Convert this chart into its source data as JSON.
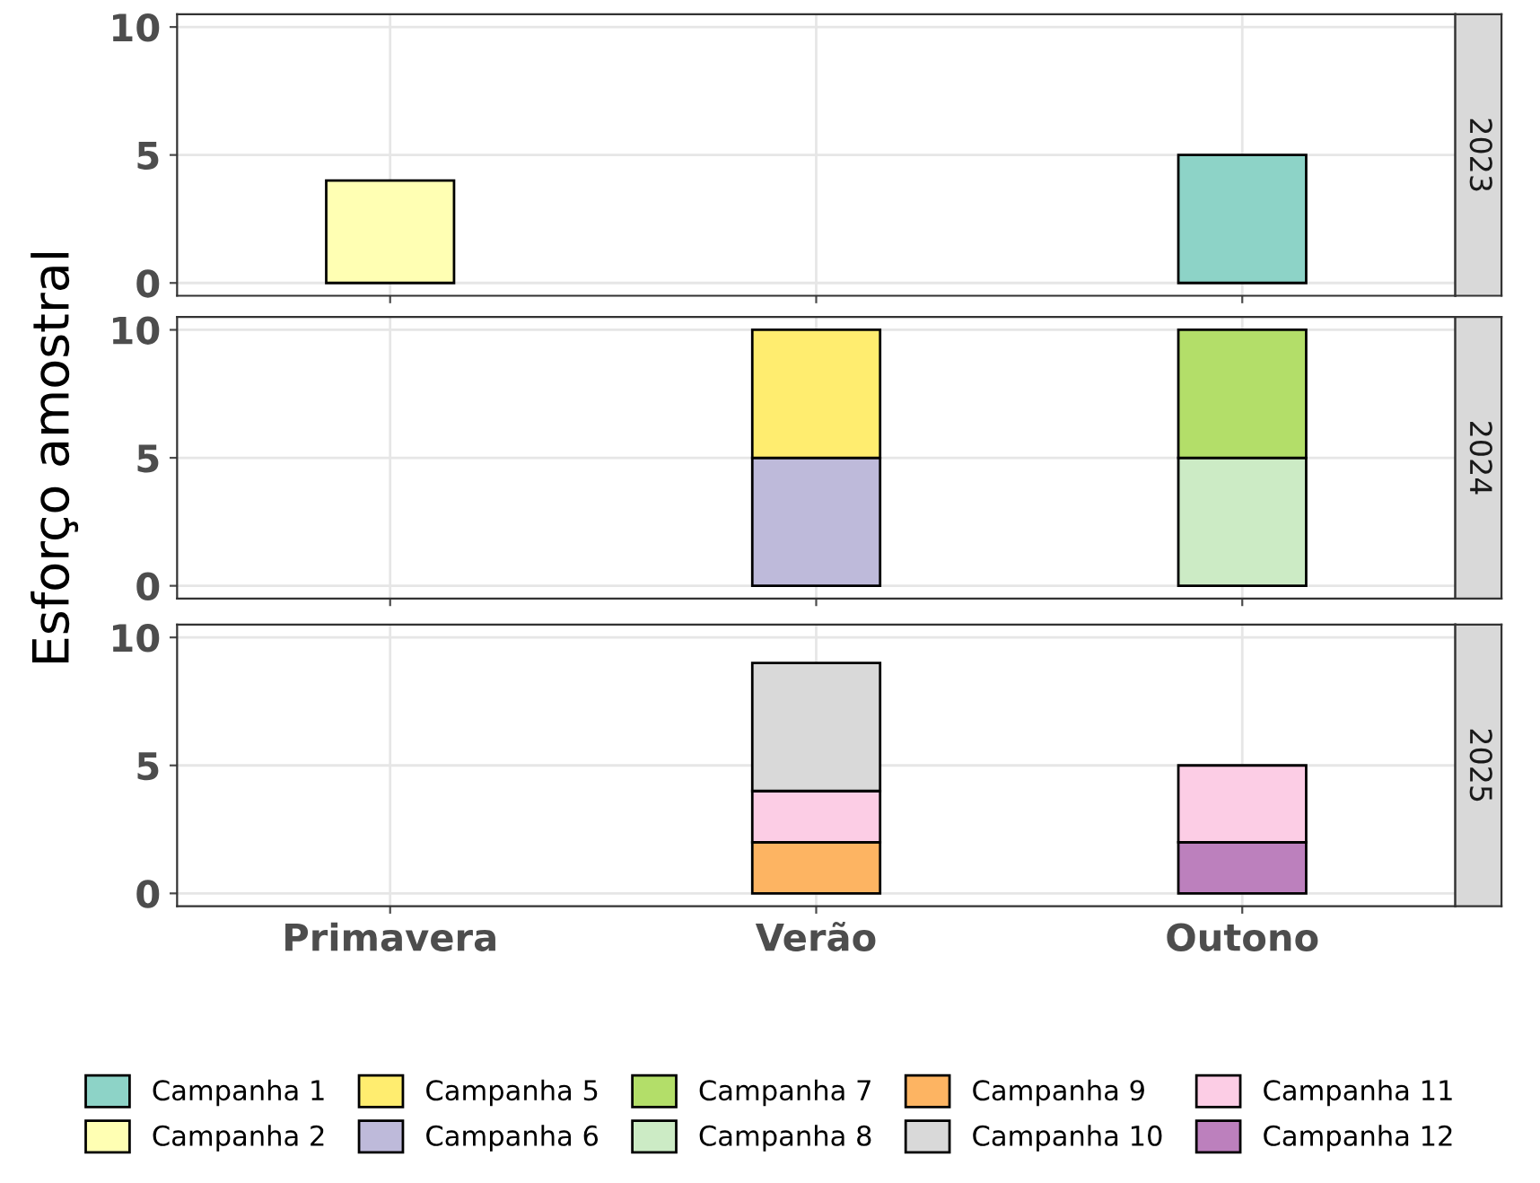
{
  "chart_data": [
    {
      "type": "bar",
      "title": "2023",
      "stacked": true,
      "legend": "bottom",
      "categories": [
        "Primavera",
        "Verão",
        "Outono"
      ],
      "ylim": [
        -0.5,
        10.5
      ],
      "yticks": [
        0,
        5,
        10
      ],
      "grid": true,
      "tick_labels": "y",
      "series": [
        {
          "name": "Campanha 1",
          "color": "#8dd3c7",
          "values": [
            null,
            null,
            5
          ]
        },
        {
          "name": "Campanha 2",
          "color": "#ffffb3",
          "values": [
            4,
            null,
            null
          ]
        }
      ]
    },
    {
      "type": "bar",
      "title": "2024",
      "ylabel": "Esforço amostral",
      "stacked": true,
      "legend": "bottom",
      "categories": [
        "Primavera",
        "Verão",
        "Outono"
      ],
      "ylim": [
        -0.5,
        10.5
      ],
      "yticks": [
        0,
        5,
        10
      ],
      "grid": true,
      "tick_labels": "y",
      "series": [
        {
          "name": "Campanha 6",
          "color": "#bebada",
          "values": [
            null,
            5,
            null
          ]
        },
        {
          "name": "Campanha 5",
          "color": "#ffed6f",
          "values": [
            null,
            5,
            null
          ]
        },
        {
          "name": "Campanha 8",
          "color": "#ccebc5",
          "values": [
            null,
            null,
            5
          ]
        },
        {
          "name": "Campanha 7",
          "color": "#b3de69",
          "values": [
            null,
            null,
            5
          ]
        }
      ]
    },
    {
      "type": "bar",
      "title": "2025",
      "stacked": true,
      "categories": [
        "Primavera",
        "Verão",
        "Outono"
      ],
      "ylim": [
        -0.5,
        10.5
      ],
      "yticks": [
        0,
        5,
        10
      ],
      "grid": true,
      "legend": "bottom",
      "series": [
        {
          "name": "Campanha 9",
          "color": "#fdb462",
          "values": [
            null,
            2,
            null
          ]
        },
        {
          "name": "Campanha 12",
          "color": "#bc80bd",
          "values": [
            null,
            null,
            2
          ]
        },
        {
          "name": "Campanha 11",
          "color": "#fccde5",
          "values": [
            null,
            2,
            3
          ]
        },
        {
          "name": "Campanha 10",
          "color": "#d9d9d9",
          "values": [
            null,
            5,
            null
          ]
        }
      ]
    }
  ]
}
